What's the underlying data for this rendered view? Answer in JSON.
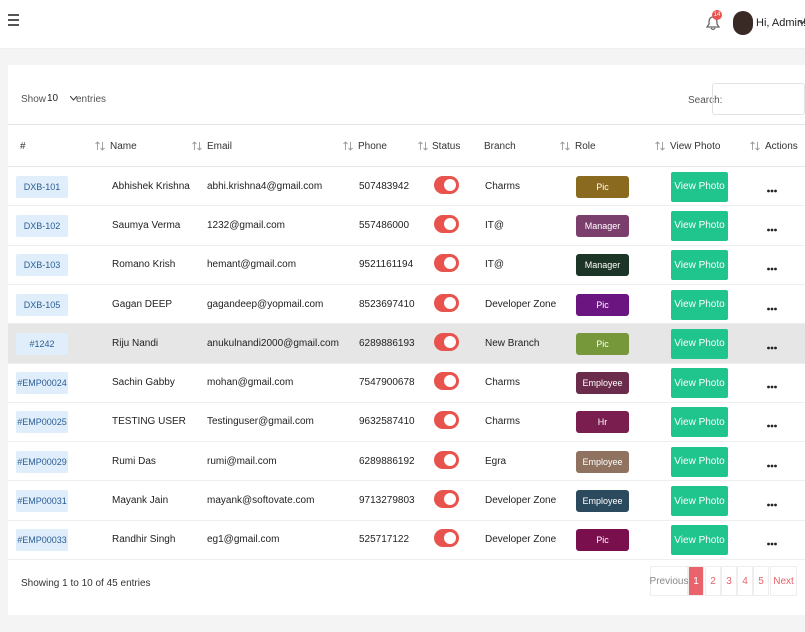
{
  "header": {
    "notification_count": "14",
    "greeting": "Hi, Admin!"
  },
  "controls": {
    "show_label": "Show",
    "entries_value": "10",
    "entries_label": "entries",
    "search_label": "Search:"
  },
  "table": {
    "columns": [
      "#",
      "Name",
      "Email",
      "Phone",
      "Status",
      "Branch",
      "Role",
      "View Photo",
      "Actions"
    ],
    "rows": [
      {
        "id": "DXB-101",
        "name": "Abhishek Krishna",
        "email": "abhi.krishna4@gmail.com",
        "phone": "507483942",
        "branch": "Charms",
        "role": "Pic",
        "role_color": "#8a6a1e",
        "photo": "View Photo"
      },
      {
        "id": "DXB-102",
        "name": "Saumya Verma",
        "email": "1232@gmail.com",
        "phone": "557486000",
        "branch": "IT@",
        "role": "Manager",
        "role_color": "#7b3f6e",
        "photo": "View Photo"
      },
      {
        "id": "DXB-103",
        "name": "Romano Krish",
        "email": "hemant@gmail.com",
        "phone": "9521161194",
        "branch": "IT@",
        "role": "Manager",
        "role_color": "#1d3526",
        "photo": "View Photo"
      },
      {
        "id": "DXB-105",
        "name": "Gagan DEEP",
        "email": "gagandeep@yopmail.com",
        "phone": "8523697410",
        "branch": "Developer Zone",
        "role": "Pic",
        "role_color": "#6a1580",
        "photo": "View Photo"
      },
      {
        "id": "#1242",
        "name": "Riju Nandi",
        "email": "anukulnandi2000@gmail.com",
        "phone": "6289886193",
        "branch": "New Branch",
        "role": "Pic",
        "role_color": "#76973a",
        "photo": "View Photo"
      },
      {
        "id": "#EMP00024",
        "name": "Sachin Gabby",
        "email": "mohan@gmail.com",
        "phone": "7547900678",
        "branch": "Charms",
        "role": "Employee",
        "role_color": "#6b2c4b",
        "photo": "View Photo"
      },
      {
        "id": "#EMP00025",
        "name": "TESTING USER",
        "email": "Testinguser@gmail.com",
        "phone": "9632587410",
        "branch": "Charms",
        "role": "Hr",
        "role_color": "#7a1d4f",
        "photo": "View Photo"
      },
      {
        "id": "#EMP00029",
        "name": "Rumi Das",
        "email": "rumi@mail.com",
        "phone": "6289886192",
        "branch": "Egra",
        "role": "Employee",
        "role_color": "#8f7360",
        "photo": "View Photo"
      },
      {
        "id": "#EMP00031",
        "name": "Mayank Jain",
        "email": "mayank@softovate.com",
        "phone": "9713279803",
        "branch": "Developer Zone",
        "role": "Employee",
        "role_color": "#2c4a5e",
        "photo": "View Photo"
      },
      {
        "id": "#EMP00033",
        "name": "Randhir Singh",
        "email": "eg1@gmail.com",
        "phone": "525717122",
        "branch": "Developer Zone",
        "role": "Pic",
        "role_color": "#7a0f4e",
        "photo": "View Photo"
      }
    ]
  },
  "footer": {
    "info": "Showing 1 to 10 of 45 entries",
    "pagination": [
      "Previous",
      "1",
      "2",
      "3",
      "4",
      "5",
      "Next"
    ],
    "active_page": "1"
  }
}
